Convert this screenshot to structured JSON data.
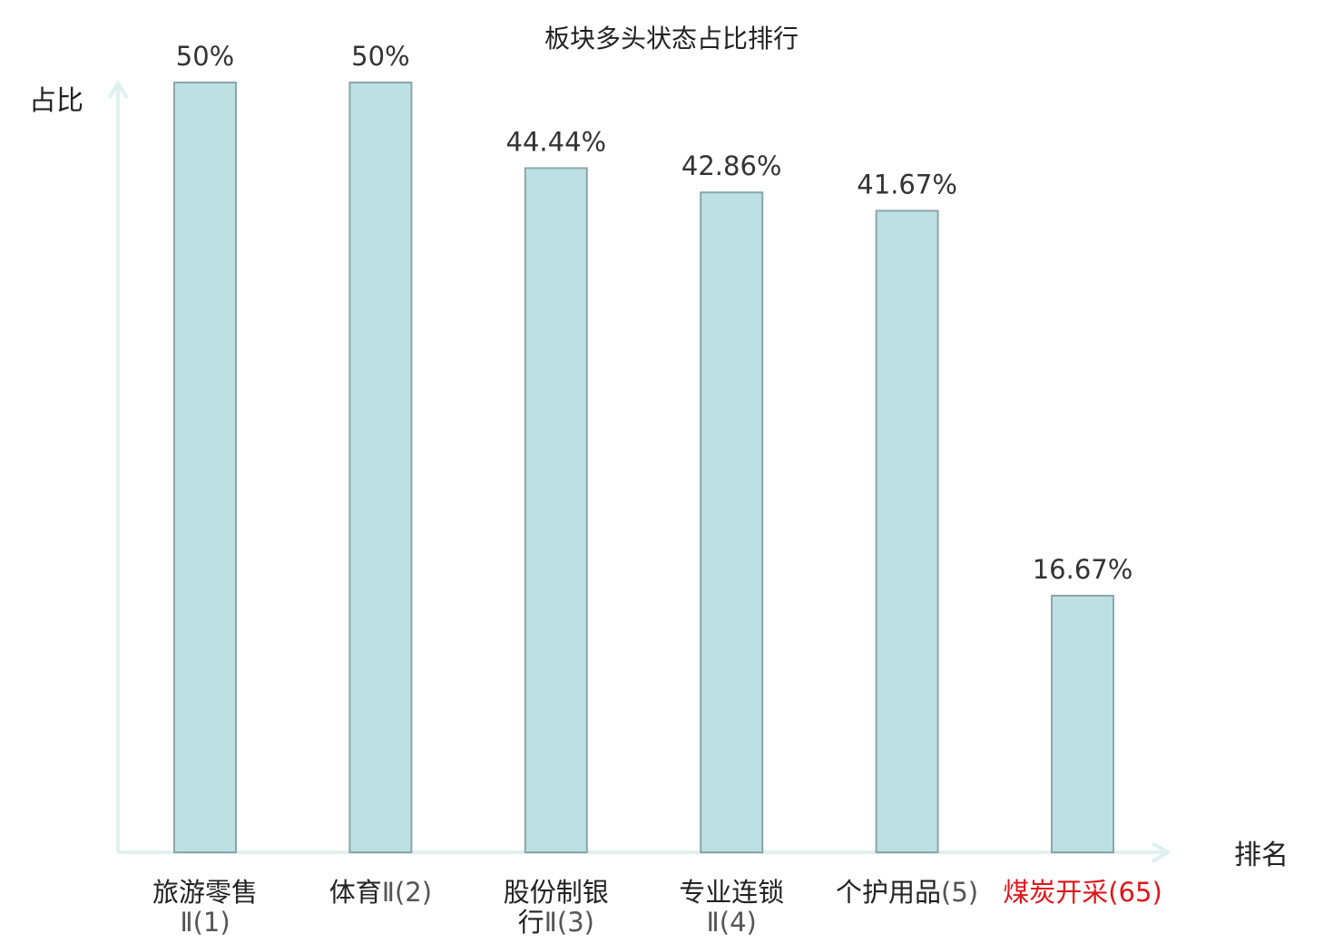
{
  "chart_data": {
    "type": "bar",
    "title": "板块多头状态占比排行",
    "xlabel": "排名",
    "ylabel": "占比",
    "categories": [
      {
        "lines": [
          "旅游零售",
          "Ⅱ(1)"
        ],
        "color": "#222222",
        "rankColor": "#555555"
      },
      {
        "lines": [
          "体育Ⅱ(2)"
        ],
        "color": "#222222",
        "rankColor": "#555555"
      },
      {
        "lines": [
          "股份制银",
          "行Ⅱ(3)"
        ],
        "color": "#222222",
        "rankColor": "#555555"
      },
      {
        "lines": [
          "专业连锁",
          "Ⅱ(4)"
        ],
        "color": "#222222",
        "rankColor": "#555555"
      },
      {
        "lines": [
          "个护用品(5)"
        ],
        "color": "#222222",
        "rankColor": "#555555"
      },
      {
        "lines": [
          "煤炭开采(65)"
        ],
        "color": "#e0161b",
        "rankColor": "#e0161b"
      }
    ],
    "values": [
      50,
      50,
      44.44,
      42.86,
      41.67,
      16.67
    ],
    "value_labels": [
      "50%",
      "50%",
      "44.44%",
      "42.86%",
      "41.67%",
      "16.67%"
    ],
    "ylim": [
      0,
      50
    ],
    "grid": false,
    "colors": {
      "bar_fill": "#bde0e3",
      "bar_stroke": "#8aa6a8",
      "axis": "#dff1ef"
    }
  }
}
